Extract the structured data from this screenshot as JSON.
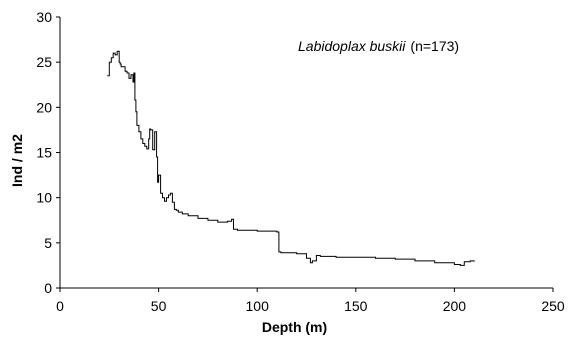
{
  "chart_data": {
    "type": "line",
    "xlabel": "Depth (m)",
    "ylabel": "Ind / m2",
    "xlim": [
      0,
      250
    ],
    "ylim": [
      0,
      30
    ],
    "xticks": [
      0,
      50,
      100,
      150,
      200,
      250
    ],
    "yticks": [
      0,
      5,
      10,
      15,
      20,
      25,
      30
    ],
    "grid": false,
    "annotation": {
      "species": "Labidoplax buskii",
      "count": "(n=173)"
    },
    "series": [
      {
        "line_style": "step",
        "color": "#000000",
        "x": [
          24,
          25,
          26,
          27,
          28,
          29,
          30,
          30.5,
          31,
          33,
          34,
          35,
          36,
          37,
          37.5,
          38,
          38.5,
          39,
          40,
          41,
          42,
          43,
          44,
          45,
          45.5,
          46,
          47,
          48,
          49,
          49.5,
          50,
          51,
          52,
          53,
          54,
          55,
          56,
          57,
          58,
          59,
          60,
          62,
          65,
          70,
          75,
          80,
          85,
          87,
          88,
          90,
          100,
          110,
          111,
          112,
          120,
          125,
          127,
          128,
          130,
          132,
          135,
          140,
          150,
          160,
          170,
          180,
          190,
          195,
          200,
          203,
          205,
          208,
          210
        ],
        "y": [
          23.5,
          25.0,
          25.5,
          26.0,
          25.8,
          26.2,
          25.0,
          24.8,
          24.5,
          24.0,
          23.8,
          23.2,
          23.6,
          22.8,
          23.8,
          20.8,
          19.5,
          18.0,
          17.3,
          16.5,
          16.0,
          15.7,
          15.4,
          16.5,
          17.6,
          17.5,
          15.3,
          17.3,
          14.5,
          11.7,
          12.5,
          10.5,
          10.0,
          9.6,
          10.0,
          10.3,
          10.5,
          9.5,
          8.7,
          8.6,
          8.4,
          8.2,
          8.0,
          7.7,
          7.5,
          7.3,
          7.4,
          7.6,
          6.5,
          6.4,
          6.3,
          6.2,
          4.0,
          3.9,
          3.8,
          3.3,
          2.8,
          3.0,
          3.6,
          3.5,
          3.5,
          3.4,
          3.4,
          3.3,
          3.2,
          3.0,
          2.8,
          2.8,
          2.6,
          2.5,
          2.9,
          3.0,
          2.9
        ]
      }
    ]
  }
}
